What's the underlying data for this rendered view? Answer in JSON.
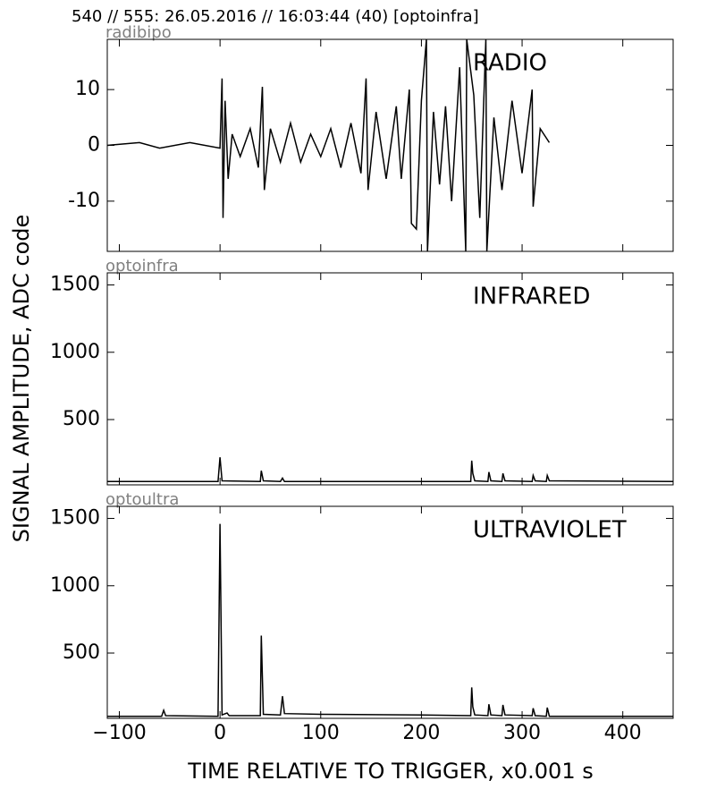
{
  "title": "540 // 555:   26.05.2016 // 16:03:44 (40)  [optoinfra]",
  "xlabel": "TIME RELATIVE TO TRIGGER,   x0.001 s",
  "ylabel": "SIGNAL AMPLITUDE,  ADC code",
  "chart_data": [
    {
      "type": "line",
      "label": "radibipo",
      "annotation": "RADIO",
      "color": "#000000",
      "x": [
        -112,
        -80,
        -60,
        -30,
        0,
        2,
        3,
        5,
        8,
        12,
        20,
        30,
        38,
        42,
        44,
        50,
        60,
        70,
        80,
        90,
        100,
        110,
        120,
        130,
        140,
        145,
        147,
        155,
        165,
        175,
        180,
        188,
        190,
        195,
        200,
        205,
        206,
        212,
        218,
        224,
        230,
        238,
        244,
        245,
        252,
        258,
        264,
        265,
        272,
        280,
        290,
        300,
        310,
        311,
        318,
        327
      ],
      "y": [
        0,
        0.5,
        -0.5,
        0.5,
        -0.5,
        12,
        -13,
        8,
        -6,
        2,
        -2,
        3,
        -4,
        10.5,
        -8,
        3,
        -3,
        4,
        -3,
        2,
        -2,
        3,
        -4,
        4,
        -5,
        12,
        -8,
        6,
        -6,
        7,
        -6,
        10,
        -14,
        -15,
        8,
        19,
        -19,
        6,
        -7,
        7,
        -10,
        14,
        -19,
        19,
        9,
        -13,
        19,
        -19,
        5,
        -8,
        8,
        -5,
        10,
        -11,
        3,
        0.5
      ],
      "xlim": [
        -112,
        450
      ],
      "ylim": [
        -19,
        19
      ],
      "yticks": [
        -10,
        0,
        10
      ]
    },
    {
      "type": "line",
      "label": "optoinfra",
      "annotation": "INFRARED",
      "color": "#000000",
      "x": [
        -112,
        -50,
        -2,
        0,
        2,
        40,
        41,
        43,
        60,
        62,
        64,
        150,
        249,
        250,
        251,
        253,
        266,
        267,
        269,
        280,
        281,
        283,
        310,
        311,
        313,
        324,
        325,
        327,
        450
      ],
      "y": [
        40,
        40,
        40,
        220,
        45,
        40,
        120,
        45,
        40,
        65,
        40,
        40,
        40,
        195,
        100,
        45,
        40,
        110,
        45,
        40,
        100,
        45,
        40,
        85,
        45,
        40,
        85,
        45,
        40
      ],
      "xlim": [
        -112,
        450
      ],
      "ylim": [
        15,
        1590
      ],
      "yticks": [
        500,
        1000,
        1500
      ]
    },
    {
      "type": "line",
      "label": "optoultra",
      "annotation": "ULTRAVIOLET",
      "color": "#000000",
      "x": [
        -112,
        -58,
        -56,
        -54,
        -2,
        0,
        2,
        7,
        9,
        40,
        41,
        43,
        60,
        62,
        64,
        100,
        200,
        249,
        250,
        251,
        253,
        266,
        267,
        269,
        280,
        281,
        283,
        310,
        311,
        313,
        324,
        325,
        327,
        450
      ],
      "y": [
        30,
        30,
        75,
        35,
        30,
        1460,
        40,
        55,
        35,
        35,
        630,
        45,
        40,
        180,
        50,
        45,
        40,
        35,
        245,
        100,
        40,
        35,
        120,
        40,
        35,
        115,
        40,
        35,
        90,
        35,
        30,
        95,
        30,
        30
      ],
      "xlim": [
        -112,
        450
      ],
      "ylim": [
        15,
        1590
      ],
      "yticks": [
        500,
        1000,
        1500
      ],
      "xticks": [
        {
          "value": -100,
          "label": "−100"
        },
        0,
        100,
        200,
        300,
        400
      ]
    }
  ]
}
